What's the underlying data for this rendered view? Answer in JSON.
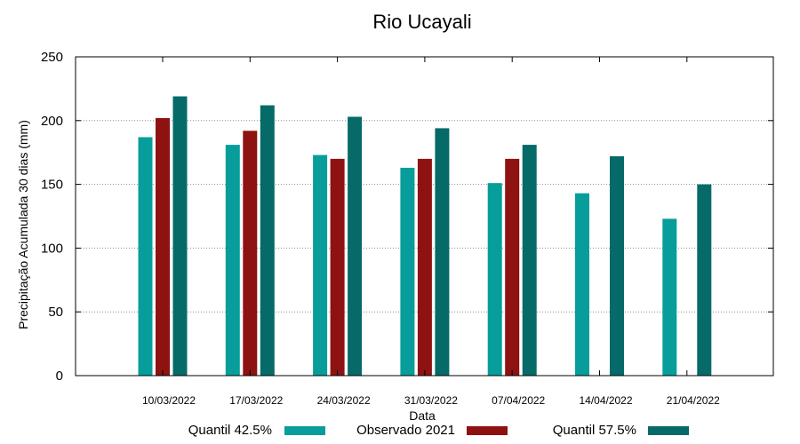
{
  "chart_data": {
    "type": "bar",
    "title": "Rio Ucayali",
    "xlabel": "Data",
    "ylabel": "Precipitação Acumulada 30 dias (mm)",
    "ylim": [
      0,
      250
    ],
    "yticks": [
      0,
      50,
      100,
      150,
      200,
      250
    ],
    "grid": true,
    "legend_position": "bottom",
    "categories": [
      "10/03/2022",
      "17/03/2022",
      "24/03/2022",
      "31/03/2022",
      "07/04/2022",
      "14/04/2022",
      "21/04/2022"
    ],
    "series": [
      {
        "name": "Quantil 42.5%",
        "color": "#079d9a",
        "values": [
          187,
          181,
          173,
          163,
          151,
          143,
          123
        ]
      },
      {
        "name": "Observado 2021",
        "color": "#8f1212",
        "values": [
          202,
          192,
          170,
          170,
          170,
          null,
          null
        ]
      },
      {
        "name": "Quantil 57.5%",
        "color": "#066a68",
        "values": [
          219,
          212,
          203,
          194,
          181,
          172,
          150
        ]
      }
    ]
  }
}
